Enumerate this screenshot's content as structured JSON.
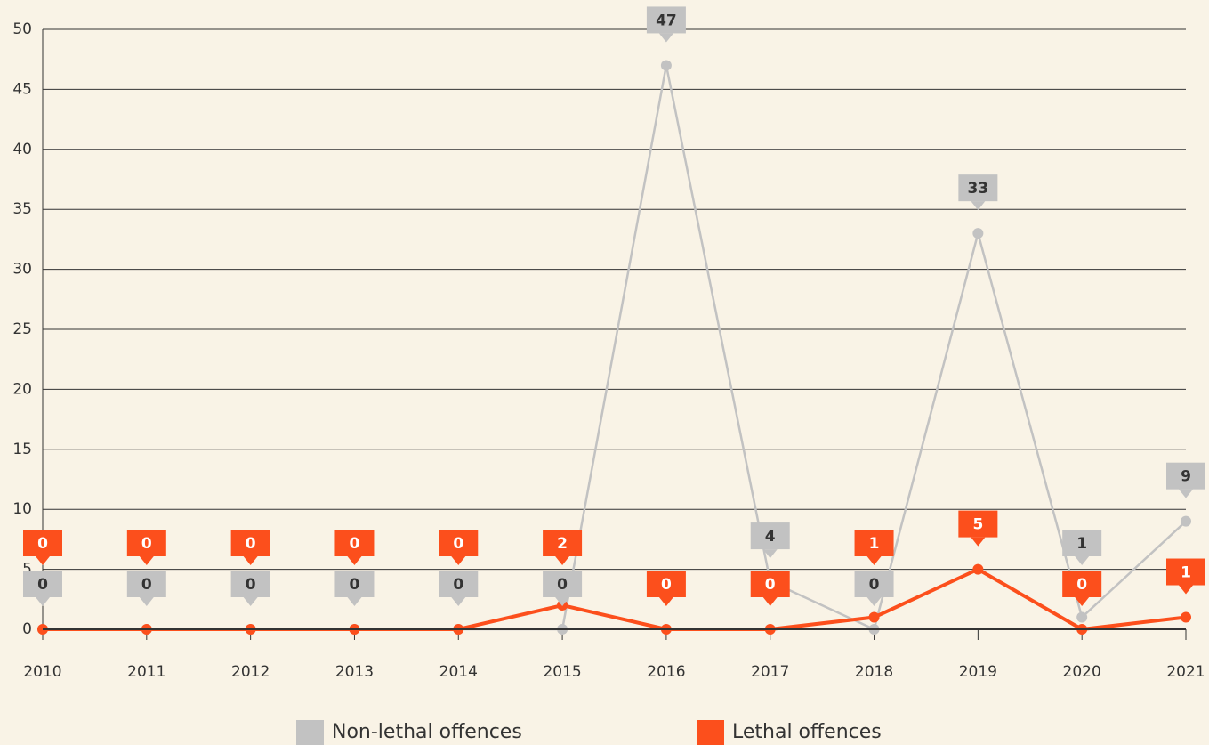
{
  "chart_data": {
    "type": "line",
    "categories": [
      "2010",
      "2011",
      "2012",
      "2013",
      "2014",
      "2015",
      "2016",
      "2017",
      "2018",
      "2019",
      "2020",
      "2021"
    ],
    "series": [
      {
        "name": "Non-lethal offences",
        "color": "#c2c2c2",
        "values": [
          0,
          0,
          0,
          0,
          0,
          0,
          47,
          4,
          0,
          33,
          1,
          9
        ]
      },
      {
        "name": "Lethal offences",
        "color": "#fc4f1c",
        "values": [
          0,
          0,
          0,
          0,
          0,
          2,
          0,
          0,
          1,
          5,
          0,
          1
        ]
      }
    ],
    "ylim": [
      0,
      50
    ],
    "yticks": [
      0,
      5,
      10,
      15,
      20,
      25,
      30,
      35,
      40,
      45,
      50
    ],
    "grid": true,
    "legend": "bottom"
  }
}
